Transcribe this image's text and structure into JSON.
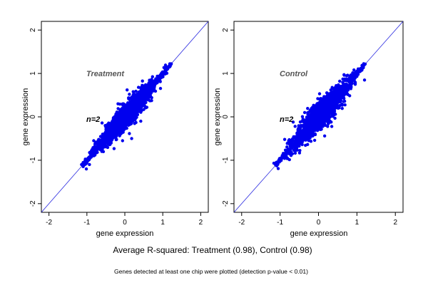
{
  "chart_data": [
    {
      "type": "scatter",
      "title": "Treatment",
      "annotation": "n=2",
      "xlabel": "gene expression",
      "ylabel": "gene expression",
      "xlim": [
        -2.2,
        2.2
      ],
      "ylim": [
        -2.2,
        2.2
      ],
      "xticks": [
        -2,
        -1,
        0,
        1,
        2
      ],
      "yticks": [
        -2,
        -1,
        0,
        1,
        2
      ],
      "reference_line": {
        "slope": 1,
        "intercept": 0
      },
      "point_color": "#0000ee",
      "line_color": "#2a2ae0",
      "grid": false,
      "points": {
        "approximate_count": 2000,
        "x_range": [
          -1.12,
          1.22
        ],
        "spread_sd": 0.07,
        "max_spread_sd": 0.18,
        "notable_outliers": [
          {
            "x": 0.06,
            "y": 0.62
          },
          {
            "x": 0.22,
            "y": 0.58
          },
          {
            "x": 0.36,
            "y": 0.68
          },
          {
            "x": 0.12,
            "y": 0.52
          },
          {
            "x": -0.18,
            "y": 0.3
          },
          {
            "x": -0.6,
            "y": -0.14
          },
          {
            "x": 0.18,
            "y": -0.5
          },
          {
            "x": -0.06,
            "y": -0.55
          },
          {
            "x": -0.36,
            "y": -0.6
          },
          {
            "x": 0.42,
            "y": -0.1
          },
          {
            "x": 0.58,
            "y": 0.22
          },
          {
            "x": -0.82,
            "y": -0.55
          }
        ]
      }
    },
    {
      "type": "scatter",
      "title": "Control",
      "annotation": "n=2",
      "xlabel": "gene expression",
      "ylabel": "gene expression",
      "xlim": [
        -2.2,
        2.2
      ],
      "ylim": [
        -2.2,
        2.2
      ],
      "xticks": [
        -2,
        -1,
        0,
        1,
        2
      ],
      "yticks": [
        -2,
        -1,
        0,
        1,
        2
      ],
      "reference_line": {
        "slope": 1,
        "intercept": 0
      },
      "point_color": "#0000ee",
      "line_color": "#2a2ae0",
      "grid": false,
      "points": {
        "approximate_count": 2000,
        "x_range": [
          -1.12,
          1.2
        ],
        "spread_sd": 0.08,
        "max_spread_sd": 0.2,
        "notable_outliers": [
          {
            "x": -0.02,
            "y": 0.42
          },
          {
            "x": 0.32,
            "y": 0.62
          },
          {
            "x": 0.46,
            "y": 0.72
          },
          {
            "x": -0.36,
            "y": 0.1
          },
          {
            "x": -0.66,
            "y": -0.12
          },
          {
            "x": 0.16,
            "y": -0.44
          },
          {
            "x": -0.1,
            "y": -0.54
          },
          {
            "x": 0.44,
            "y": 0.06
          },
          {
            "x": -0.88,
            "y": -0.52
          },
          {
            "x": 0.68,
            "y": 0.36
          }
        ]
      }
    }
  ],
  "caption": {
    "main": "Average R-squared: Treatment (0.98), Control (0.98)",
    "sub": "Genes detected at least one chip were plotted (detection p-value < 0.01)"
  }
}
